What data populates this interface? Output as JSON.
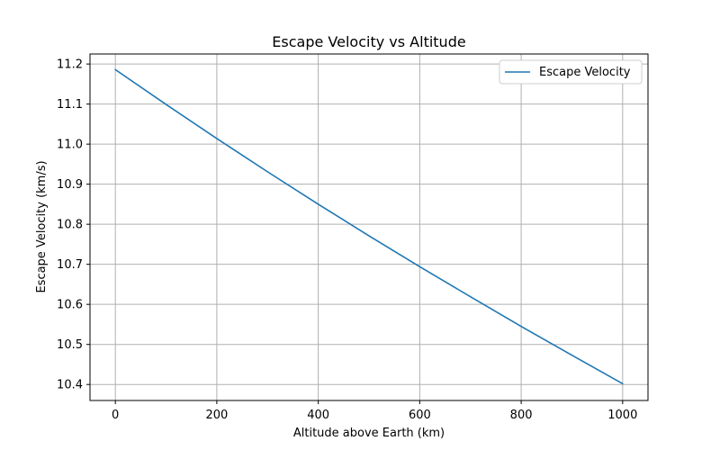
{
  "chart_data": {
    "type": "line",
    "title": "Escape Velocity vs Altitude",
    "xlabel": "Altitude above Earth (km)",
    "ylabel": "Escape Velocity (km/s)",
    "xlim": [
      -50,
      1050
    ],
    "ylim": [
      10.36,
      11.225
    ],
    "xticks": [
      0,
      200,
      400,
      600,
      800,
      1000
    ],
    "yticks": [
      10.4,
      10.5,
      10.6,
      10.7,
      10.8,
      10.9,
      11.0,
      11.1,
      11.2
    ],
    "grid": true,
    "legend_position": "top-right",
    "series": [
      {
        "name": "Escape Velocity",
        "color": "#1f77b4",
        "x": [
          0,
          100,
          200,
          300,
          400,
          500,
          600,
          700,
          800,
          900,
          1000
        ],
        "y": [
          11.186,
          11.099,
          11.014,
          10.931,
          10.85,
          10.771,
          10.694,
          10.619,
          10.545,
          10.473,
          10.402
        ]
      }
    ]
  }
}
